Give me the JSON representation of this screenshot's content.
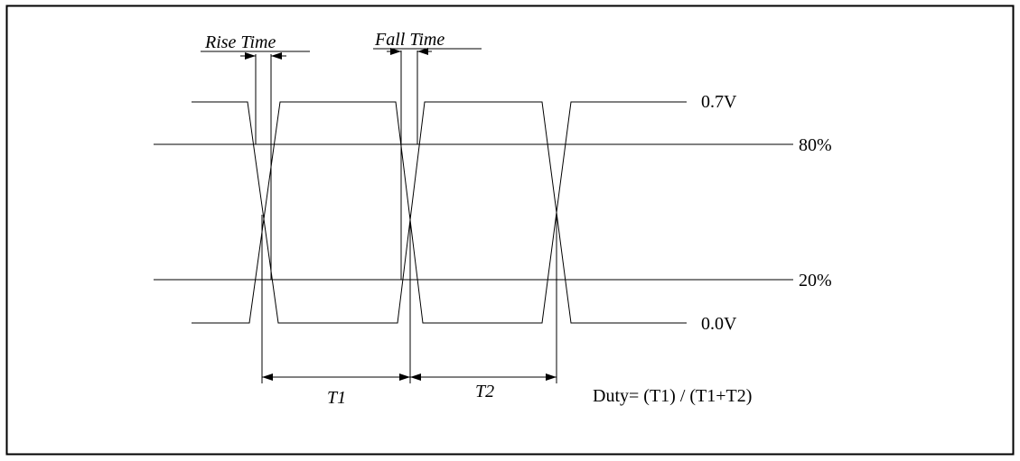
{
  "labels": {
    "rise_time": "Rise Time",
    "fall_time": "Fall Time",
    "v_high": "0.7V",
    "v_low": "0.0V",
    "pct_80": "80%",
    "pct_20": "20%",
    "t1": "T1",
    "t2": "T2",
    "duty_formula": "Duty= (T1) / (T1+T2)"
  }
}
